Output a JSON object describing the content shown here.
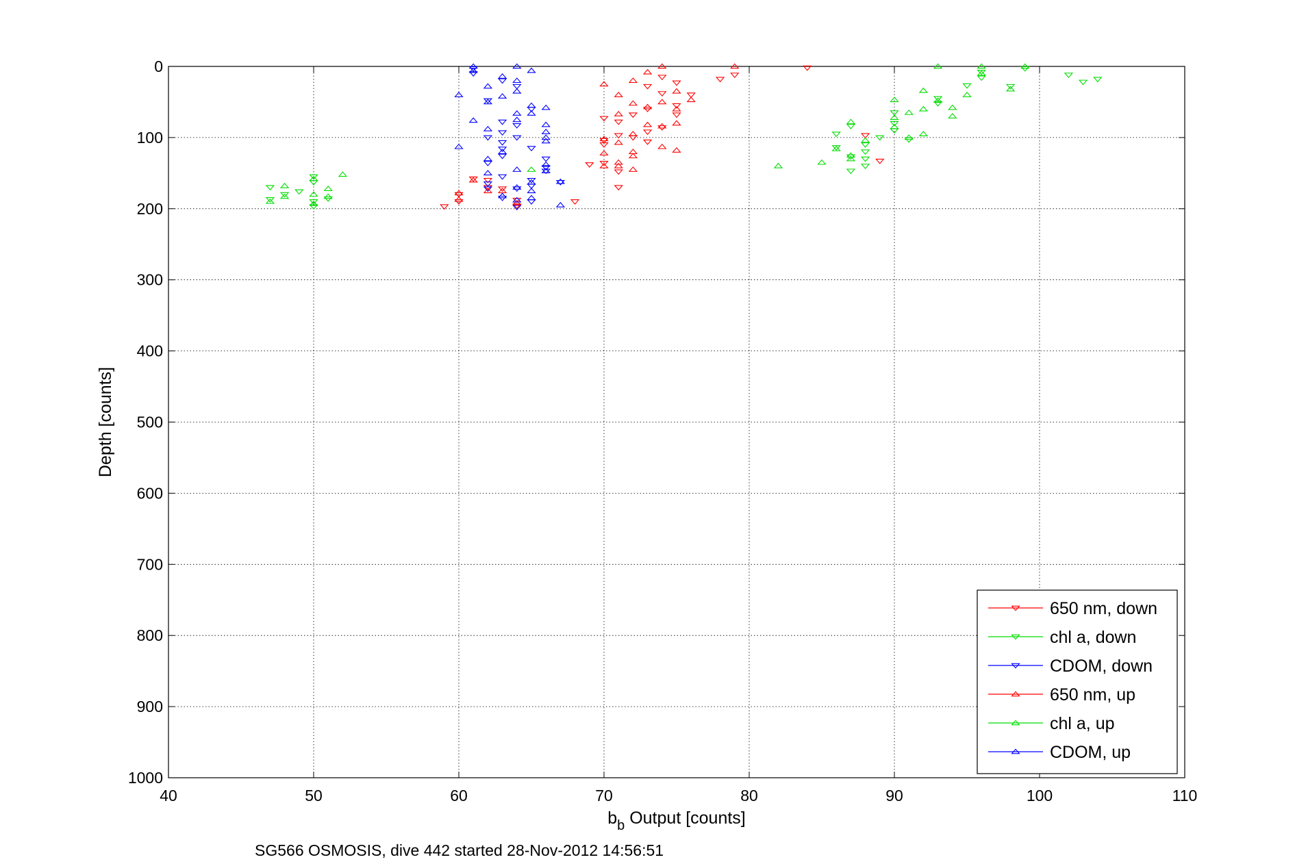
{
  "chart_data": {
    "type": "scatter",
    "xlabel_main": "b",
    "xlabel_sub": "b",
    "xlabel_rest": " Output [counts]",
    "ylabel": "Depth [counts]",
    "caption": "SG566 OSMOSIS, dive 442 started 28-Nov-2012 14:56:51",
    "xlim": [
      40,
      110
    ],
    "ylim": [
      0,
      1000
    ],
    "y_reversed": true,
    "grid": true,
    "legend_position": "bottom-right",
    "x_ticks": [
      "40",
      "50",
      "60",
      "70",
      "80",
      "90",
      "100",
      "110"
    ],
    "y_ticks": [
      "0",
      "100",
      "200",
      "300",
      "400",
      "500",
      "600",
      "700",
      "800",
      "900",
      "1000"
    ],
    "series": [
      {
        "name": "650 nm, down",
        "color": "#ff0000",
        "marker": "triangle-down",
        "points": [
          [
            84,
            2
          ],
          [
            79,
            12
          ],
          [
            78,
            18
          ],
          [
            74,
            15
          ],
          [
            75,
            23
          ],
          [
            73,
            28
          ],
          [
            76,
            40
          ],
          [
            74,
            38
          ],
          [
            75,
            55
          ],
          [
            73,
            60
          ],
          [
            72,
            68
          ],
          [
            75,
            68
          ],
          [
            70,
            73
          ],
          [
            71,
            78
          ],
          [
            74,
            86
          ],
          [
            73,
            92
          ],
          [
            71,
            97
          ],
          [
            72,
            100
          ],
          [
            70,
            104
          ],
          [
            73,
            106
          ],
          [
            70,
            110
          ],
          [
            69,
            138
          ],
          [
            71,
            148
          ],
          [
            70,
            136
          ],
          [
            89,
            133
          ],
          [
            88,
            97
          ],
          [
            61,
            158
          ],
          [
            62,
            160
          ],
          [
            62,
            170
          ],
          [
            63,
            172
          ],
          [
            60,
            180
          ],
          [
            60,
            190
          ],
          [
            59,
            197
          ],
          [
            64,
            196
          ],
          [
            64,
            188
          ],
          [
            68,
            190
          ],
          [
            71,
            170
          ]
        ]
      },
      {
        "name": "chl a, down",
        "color": "#00dd00",
        "marker": "triangle-down",
        "points": [
          [
            104,
            18
          ],
          [
            103,
            22
          ],
          [
            102,
            12
          ],
          [
            96,
            8
          ],
          [
            96,
            16
          ],
          [
            99,
            3
          ],
          [
            98,
            28
          ],
          [
            95,
            27
          ],
          [
            93,
            45
          ],
          [
            93,
            52
          ],
          [
            90,
            65
          ],
          [
            89,
            100
          ],
          [
            91,
            103
          ],
          [
            90,
            80
          ],
          [
            90,
            90
          ],
          [
            87,
            84
          ],
          [
            86,
            95
          ],
          [
            86,
            114
          ],
          [
            87,
            127
          ],
          [
            88,
            110
          ],
          [
            88,
            120
          ],
          [
            88,
            130
          ],
          [
            88,
            140
          ],
          [
            87,
            147
          ],
          [
            50,
            155
          ],
          [
            50,
            163
          ],
          [
            47,
            170
          ],
          [
            48,
            180
          ],
          [
            49,
            176
          ],
          [
            47,
            187
          ],
          [
            50,
            190
          ],
          [
            50,
            197
          ],
          [
            51,
            186
          ]
        ]
      },
      {
        "name": "CDOM, down",
        "color": "#0000ff",
        "marker": "triangle-down",
        "points": [
          [
            61,
            3
          ],
          [
            61,
            10
          ],
          [
            63,
            20
          ],
          [
            64,
            28
          ],
          [
            62,
            48
          ],
          [
            65,
            60
          ],
          [
            63,
            78
          ],
          [
            64,
            83
          ],
          [
            63,
            93
          ],
          [
            64,
            100
          ],
          [
            62,
            100
          ],
          [
            65,
            115
          ],
          [
            63,
            107
          ],
          [
            63,
            116
          ],
          [
            63,
            126
          ],
          [
            66,
            130
          ],
          [
            62,
            136
          ],
          [
            66,
            142
          ],
          [
            63,
            155
          ],
          [
            65,
            160
          ],
          [
            67,
            163
          ],
          [
            62,
            165
          ],
          [
            65,
            168
          ],
          [
            62,
            172
          ],
          [
            64,
            172
          ],
          [
            66,
            147
          ],
          [
            63,
            185
          ],
          [
            65,
            190
          ],
          [
            64,
            198
          ]
        ]
      },
      {
        "name": "650 nm, up",
        "color": "#ff0000",
        "marker": "triangle-up",
        "points": [
          [
            79,
            0
          ],
          [
            74,
            0
          ],
          [
            73,
            8
          ],
          [
            72,
            20
          ],
          [
            70,
            25
          ],
          [
            71,
            40
          ],
          [
            75,
            35
          ],
          [
            74,
            50
          ],
          [
            72,
            52
          ],
          [
            76,
            47
          ],
          [
            73,
            57
          ],
          [
            75,
            60
          ],
          [
            71,
            67
          ],
          [
            75,
            80
          ],
          [
            74,
            84
          ],
          [
            73,
            82
          ],
          [
            72,
            95
          ],
          [
            70,
            102
          ],
          [
            71,
            107
          ],
          [
            70,
            122
          ],
          [
            72,
            120
          ],
          [
            74,
            113
          ],
          [
            75,
            118
          ],
          [
            72,
            126
          ],
          [
            71,
            135
          ],
          [
            71,
            140
          ],
          [
            70,
            140
          ],
          [
            72,
            145
          ],
          [
            61,
            160
          ],
          [
            62,
            175
          ],
          [
            60,
            178
          ],
          [
            60,
            187
          ],
          [
            63,
            175
          ],
          [
            64,
            192
          ]
        ]
      },
      {
        "name": "chl a, up",
        "color": "#00dd00",
        "marker": "triangle-up",
        "points": [
          [
            93,
            0
          ],
          [
            96,
            0
          ],
          [
            99,
            0
          ],
          [
            96,
            10
          ],
          [
            98,
            32
          ],
          [
            95,
            40
          ],
          [
            92,
            34
          ],
          [
            94,
            58
          ],
          [
            93,
            48
          ],
          [
            92,
            60
          ],
          [
            91,
            65
          ],
          [
            94,
            70
          ],
          [
            90,
            47
          ],
          [
            90,
            72
          ],
          [
            90,
            85
          ],
          [
            92,
            95
          ],
          [
            91,
            100
          ],
          [
            87,
            78
          ],
          [
            86,
            116
          ],
          [
            87,
            125
          ],
          [
            87,
            130
          ],
          [
            88,
            104
          ],
          [
            85,
            135
          ],
          [
            82,
            140
          ],
          [
            65,
            145
          ],
          [
            52,
            152
          ],
          [
            50,
            158
          ],
          [
            48,
            168
          ],
          [
            51,
            172
          ],
          [
            50,
            180
          ],
          [
            48,
            183
          ],
          [
            47,
            190
          ],
          [
            51,
            183
          ],
          [
            50,
            193
          ]
        ]
      },
      {
        "name": "CDOM, up",
        "color": "#0000ff",
        "marker": "triangle-up",
        "points": [
          [
            61,
            0
          ],
          [
            64,
            0
          ],
          [
            65,
            6
          ],
          [
            61,
            6
          ],
          [
            63,
            14
          ],
          [
            64,
            20
          ],
          [
            62,
            28
          ],
          [
            64,
            35
          ],
          [
            63,
            42
          ],
          [
            60,
            40
          ],
          [
            62,
            50
          ],
          [
            65,
            55
          ],
          [
            66,
            58
          ],
          [
            64,
            66
          ],
          [
            65,
            66
          ],
          [
            61,
            76
          ],
          [
            64,
            75
          ],
          [
            66,
            82
          ],
          [
            62,
            88
          ],
          [
            66,
            92
          ],
          [
            66,
            100
          ],
          [
            66,
            105
          ],
          [
            60,
            113
          ],
          [
            63,
            120
          ],
          [
            62,
            130
          ],
          [
            66,
            138
          ],
          [
            64,
            145
          ],
          [
            66,
            147
          ],
          [
            62,
            150
          ],
          [
            65,
            163
          ],
          [
            67,
            162
          ],
          [
            64,
            170
          ],
          [
            65,
            175
          ],
          [
            63,
            182
          ],
          [
            64,
            188
          ],
          [
            65,
            185
          ],
          [
            67,
            195
          ]
        ]
      }
    ]
  }
}
